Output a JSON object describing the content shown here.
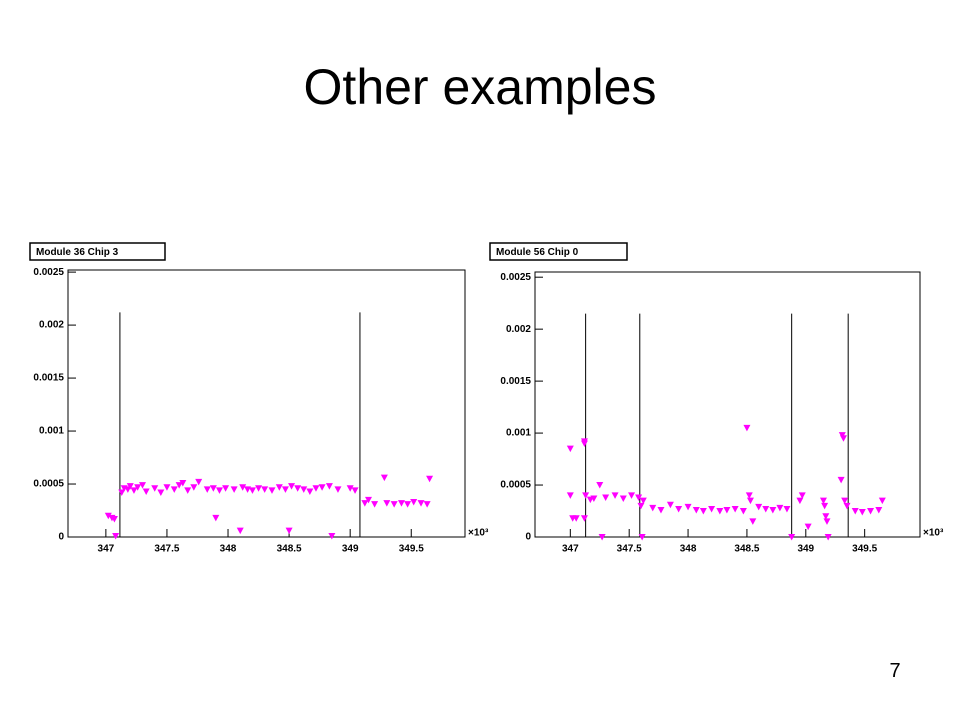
{
  "title": "Other examples",
  "page_number": "7",
  "chart_data": [
    {
      "type": "scatter",
      "title": "Module 36 Chip 3",
      "color": "#ff00ff",
      "marker": "triangle-down",
      "xlim": [
        346.69,
        349.94
      ],
      "ylim": [
        0,
        0.00252
      ],
      "xticks": [
        347,
        347.5,
        348,
        348.5,
        349,
        349.5
      ],
      "yticks": [
        0,
        0.0005,
        0.001,
        0.0015,
        0.002,
        0.0025
      ],
      "x_scale_label": "×10³",
      "vlines": [
        347.115,
        349.08
      ],
      "vline_top": 0.00212,
      "x": [
        347.02,
        347.05,
        347.07,
        347.08,
        347.13,
        347.15,
        347.18,
        347.2,
        347.23,
        347.26,
        347.3,
        347.33,
        347.4,
        347.45,
        347.5,
        347.56,
        347.6,
        347.63,
        347.67,
        347.72,
        347.76,
        347.83,
        347.88,
        347.93,
        347.98,
        348.05,
        348.12,
        348.16,
        348.2,
        348.25,
        348.3,
        348.36,
        348.42,
        348.47,
        348.52,
        348.57,
        348.62,
        348.67,
        348.72,
        348.77,
        348.83,
        348.9,
        349.0,
        349.04,
        347.9,
        348.1,
        348.5,
        348.85,
        349.12,
        349.15,
        349.2,
        349.28,
        349.3,
        349.36,
        349.42,
        349.47,
        349.52,
        349.58,
        349.63,
        349.65
      ],
      "values": [
        0.0002,
        0.00018,
        0.00017,
        1e-05,
        0.00042,
        0.00046,
        0.00045,
        0.00048,
        0.00044,
        0.00047,
        0.00049,
        0.00043,
        0.00046,
        0.00042,
        0.00047,
        0.00045,
        0.00049,
        0.00051,
        0.00044,
        0.00047,
        0.00052,
        0.00045,
        0.00046,
        0.00044,
        0.00046,
        0.00045,
        0.00047,
        0.00045,
        0.00044,
        0.00046,
        0.00045,
        0.00044,
        0.00047,
        0.00045,
        0.00048,
        0.00046,
        0.00045,
        0.00043,
        0.00046,
        0.00047,
        0.00048,
        0.00045,
        0.00046,
        0.00044,
        0.00018,
        6e-05,
        6e-05,
        1e-05,
        0.00032,
        0.00035,
        0.00031,
        0.00056,
        0.00032,
        0.00031,
        0.00032,
        0.00031,
        0.00033,
        0.00032,
        0.00031,
        0.00055
      ]
    },
    {
      "type": "scatter",
      "title": "Module 56 Chip 0",
      "color": "#ff00ff",
      "marker": "triangle-down",
      "xlim": [
        346.7,
        349.97
      ],
      "ylim": [
        0,
        0.00255
      ],
      "xticks": [
        347,
        347.5,
        348,
        348.5,
        349,
        349.5
      ],
      "yticks": [
        0,
        0.0005,
        0.001,
        0.0015,
        0.002,
        0.0025
      ],
      "x_scale_label": "×10³",
      "vlines": [
        347.13,
        347.59,
        348.88,
        349.36
      ],
      "vline_top": 0.00215,
      "x": [
        347.0,
        347.0,
        347.02,
        347.05,
        347.12,
        347.12,
        347.12,
        347.13,
        347.17,
        347.2,
        347.25,
        347.27,
        347.3,
        347.38,
        347.45,
        347.52,
        347.58,
        347.6,
        347.61,
        347.62,
        347.7,
        347.77,
        347.85,
        347.92,
        348.0,
        348.07,
        348.13,
        348.2,
        348.27,
        348.33,
        348.4,
        348.47,
        348.5,
        348.52,
        348.53,
        348.55,
        348.6,
        348.66,
        348.72,
        348.78,
        348.84,
        348.88,
        348.95,
        348.97,
        349.02,
        349.15,
        349.16,
        349.17,
        349.18,
        349.19,
        349.3,
        349.31,
        349.32,
        349.33,
        349.35,
        349.42,
        349.48,
        349.55,
        349.62,
        349.65
      ],
      "values": [
        0.00085,
        0.0004,
        0.00018,
        0.00018,
        0.00092,
        0.0009,
        0.00018,
        0.0004,
        0.00036,
        0.00037,
        0.0005,
        0.0,
        0.00038,
        0.0004,
        0.00037,
        0.0004,
        0.00038,
        0.0003,
        0.0,
        0.00035,
        0.00028,
        0.00026,
        0.00031,
        0.00027,
        0.00029,
        0.00026,
        0.00025,
        0.00027,
        0.00025,
        0.00026,
        0.00027,
        0.00025,
        0.00105,
        0.0004,
        0.00035,
        0.00015,
        0.00029,
        0.00027,
        0.00026,
        0.00028,
        0.00027,
        0.0,
        0.00035,
        0.0004,
        0.0001,
        0.00035,
        0.0003,
        0.0002,
        0.00015,
        0.0,
        0.00055,
        0.00098,
        0.00095,
        0.00035,
        0.0003,
        0.00025,
        0.00024,
        0.00025,
        0.00026,
        0.00035
      ]
    }
  ]
}
